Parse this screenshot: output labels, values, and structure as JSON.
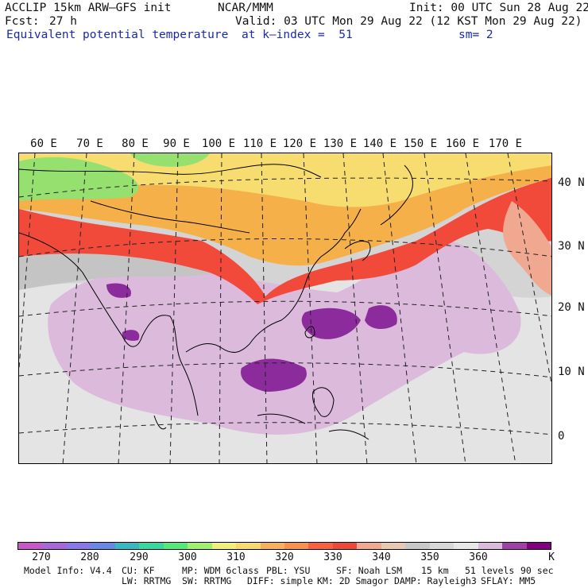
{
  "header": {
    "model_line": "ACCLIP 15km ARW–GFS init",
    "center": "NCAR/MMM",
    "init": "Init: 00 UTC Sun 28 Aug 22",
    "fcst_label": "Fcst:",
    "fcst_value": "27 h",
    "valid": "Valid: 03 UTC Mon 29 Aug 22 (12 KST Mon 29 Aug 22)",
    "field": "Equivalent potential temperature",
    "level": "at k–index =  51",
    "smoothing": "sm= 2"
  },
  "map": {
    "lon_labels": [
      "60 E",
      "70 E",
      "80 E",
      "90 E",
      "100 E",
      "110 E",
      "120 E",
      "130 E",
      "140 E",
      "150 E",
      "160 E",
      "170 E"
    ],
    "lat_labels": [
      "40 N",
      "30 N",
      "20 N",
      "10 N",
      "0"
    ],
    "colors": {
      "land_warm": "#f07850",
      "land_hot": "#f24a3a",
      "land_mid": "#f6b04a",
      "land_yellow": "#f7dd70",
      "green": "#96e070",
      "grey": "#c8c8c8",
      "light_grey": "#e2e2e2",
      "lilac": "#dcbadc",
      "purple": "#8c2c9c",
      "peach": "#f0a890",
      "coast": "#000000"
    }
  },
  "colorbar": {
    "colors": [
      "#c858c8",
      "#a868d8",
      "#8878e8",
      "#6888e8",
      "#38b8c0",
      "#38d8a0",
      "#58e878",
      "#a0f070",
      "#f0f078",
      "#f8d870",
      "#f8b060",
      "#f89050",
      "#f86040",
      "#f04838",
      "#f0a890",
      "#e8c8b0",
      "#c8c8c8",
      "#d8d8d8",
      "#e8e8e8",
      "#dcbadc",
      "#a040a8",
      "#800080"
    ],
    "labels": [
      "270",
      "280",
      "290",
      "300",
      "310",
      "320",
      "330",
      "340",
      "350",
      "360"
    ],
    "unit": "K"
  },
  "model_info": {
    "line1": [
      "Model Info: V4.4",
      "CU: KF",
      "MP: WDM 6class",
      "PBL: YSU",
      "SF: Noah LSM",
      "15 km",
      "51 levels",
      "90 sec"
    ],
    "line2": [
      "LW: RRTMG",
      "SW: RRTMG",
      "DIFF: simple",
      "KM: 2D Smagor",
      "DAMP: Rayleigh3",
      "SFLAY: MM5"
    ]
  }
}
